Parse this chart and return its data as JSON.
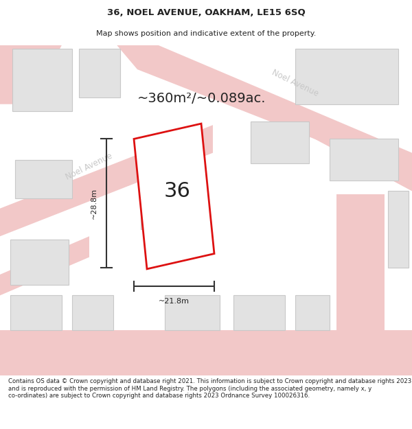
{
  "title_line1": "36, NOEL AVENUE, OAKHAM, LE15 6SQ",
  "title_line2": "Map shows position and indicative extent of the property.",
  "area_label": "~360m²/~0.089ac.",
  "number_label": "36",
  "width_label": "~21.8m",
  "height_label": "~28.8m",
  "footer_text": "Contains OS data © Crown copyright and database right 2021. This information is subject to Crown copyright and database rights 2023 and is reproduced with the permission of HM Land Registry. The polygons (including the associated geometry, namely x, y co-ordinates) are subject to Crown copyright and database rights 2023 Ordnance Survey 100026316.",
  "map_bg": "#f5f5f5",
  "road_color": "#f2c8c8",
  "building_color": "#e2e2e2",
  "building_edge": "#c8c8c8",
  "plot_color": "#dd1111",
  "plot_fill": "#ffffff",
  "dim_color": "#333333",
  "road_label_color": "#c8c8c8",
  "text_color": "#222222",
  "title_fontsize": 9.5,
  "subtitle_fontsize": 8,
  "area_fontsize": 14,
  "number_fontsize": 22,
  "dim_fontsize": 8,
  "road_label_fontsize": 8.5,
  "footer_fontsize": 6.2
}
